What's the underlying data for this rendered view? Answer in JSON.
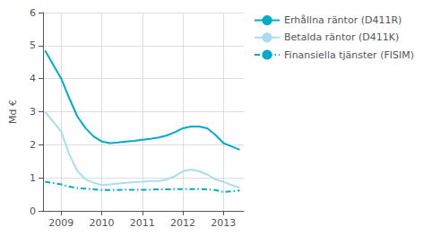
{
  "chart_data": {
    "type": "line",
    "ylabel": "Md €",
    "x": [
      2008.6,
      2009.0,
      2009.2,
      2009.4,
      2009.6,
      2009.8,
      2010.0,
      2010.2,
      2010.4,
      2010.6,
      2010.8,
      2011.0,
      2011.2,
      2011.4,
      2011.6,
      2011.8,
      2012.0,
      2012.2,
      2012.4,
      2012.6,
      2012.8,
      2013.0,
      2013.2,
      2013.4
    ],
    "series": [
      {
        "name": "Erhållna räntor (D411R)",
        "color": "#00aacc",
        "line_style": "solid",
        "values": [
          4.85,
          4.0,
          3.4,
          2.85,
          2.5,
          2.25,
          2.1,
          2.05,
          2.07,
          2.1,
          2.12,
          2.15,
          2.18,
          2.22,
          2.28,
          2.38,
          2.5,
          2.55,
          2.55,
          2.5,
          2.3,
          2.05,
          1.95,
          1.85
        ]
      },
      {
        "name": "Betalda räntor (D411K)",
        "color": "#aaddee",
        "line_style": "solid",
        "values": [
          3.0,
          2.4,
          1.7,
          1.2,
          0.95,
          0.85,
          0.78,
          0.8,
          0.83,
          0.85,
          0.87,
          0.88,
          0.9,
          0.9,
          0.95,
          1.05,
          1.2,
          1.25,
          1.2,
          1.1,
          0.95,
          0.88,
          0.78,
          0.7
        ]
      },
      {
        "name": "Finansiella tjänster (FISIM)",
        "color": "#00aacc",
        "line_style": "dashdot",
        "values": [
          0.88,
          0.8,
          0.73,
          0.69,
          0.67,
          0.65,
          0.63,
          0.63,
          0.63,
          0.64,
          0.64,
          0.64,
          0.64,
          0.65,
          0.65,
          0.66,
          0.66,
          0.66,
          0.66,
          0.65,
          0.63,
          0.57,
          0.59,
          0.62
        ]
      }
    ],
    "xlim": [
      2008.55,
      2013.5
    ],
    "xticks": [
      2009,
      2010,
      2011,
      2012,
      2013
    ],
    "ylim": [
      0,
      6
    ],
    "yticks": [
      0,
      1,
      2,
      3,
      4,
      5,
      6
    ],
    "grid": true,
    "legend": "right"
  }
}
